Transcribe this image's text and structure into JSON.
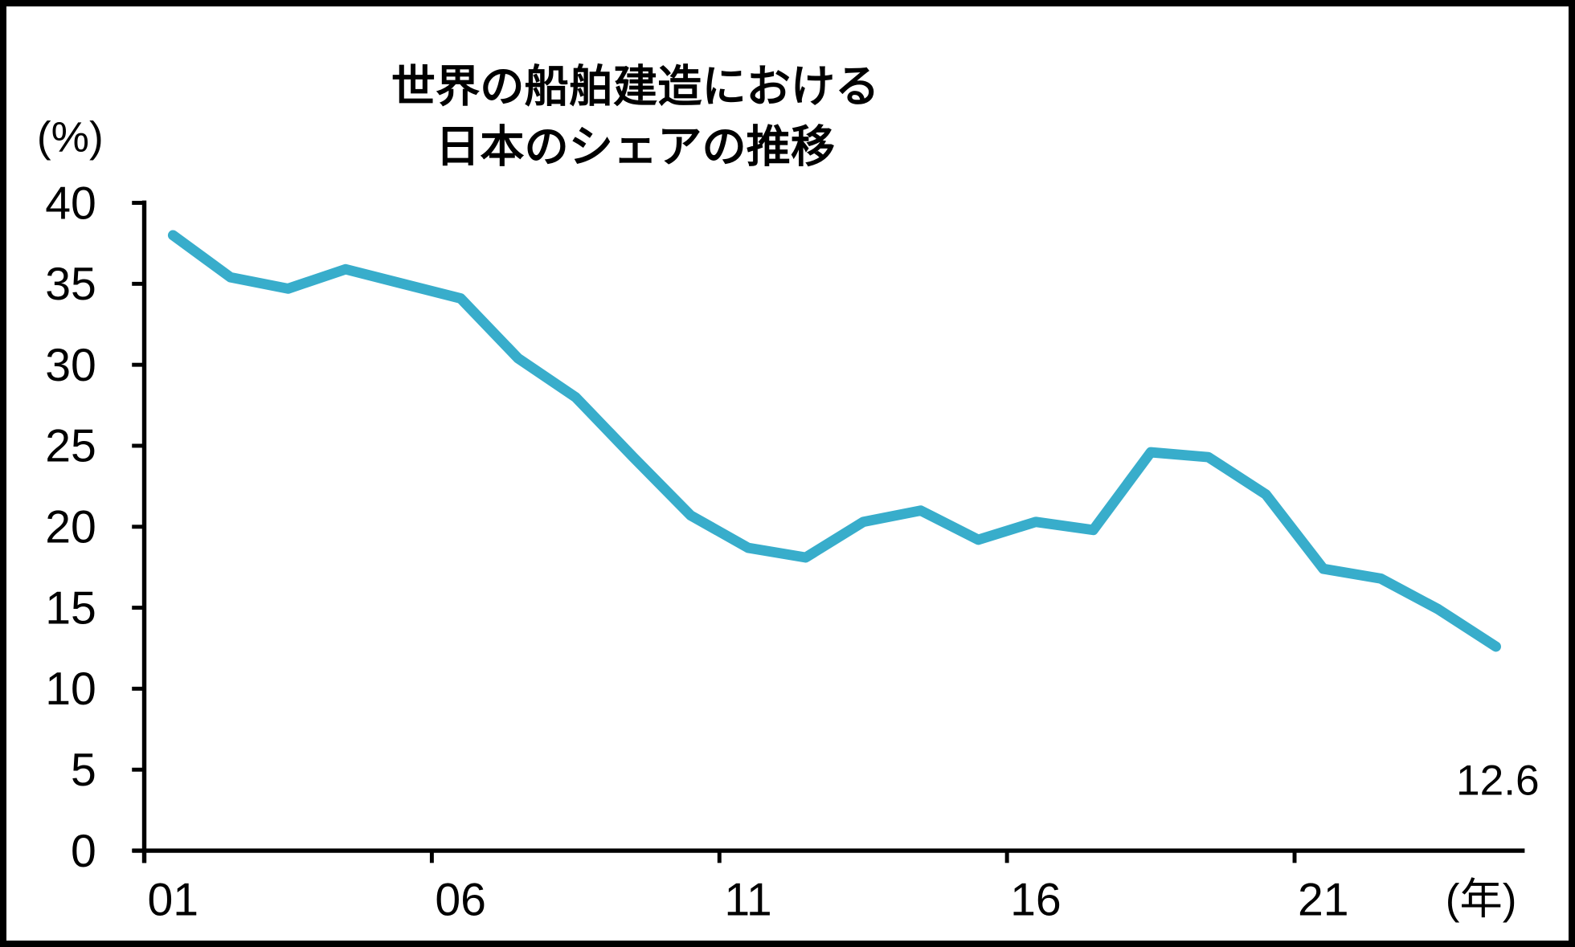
{
  "title": {
    "line1": "世界の船舶建造における",
    "line2": "日本のシェアの推移"
  },
  "y_axis": {
    "unit": "(%)",
    "ticks": [
      0,
      5,
      10,
      15,
      20,
      25,
      30,
      35,
      40
    ],
    "min": 0,
    "max": 40
  },
  "x_axis": {
    "unit": "(年)",
    "tick_labels": [
      "01",
      "06",
      "11",
      "16",
      "21"
    ],
    "tick_category_positions": [
      0,
      5,
      10,
      15,
      20
    ],
    "category_count": 24
  },
  "annotations": {
    "last_value_label": "12.6"
  },
  "colors": {
    "line": "#38ADCB",
    "axis": "#000000"
  },
  "chart_data": {
    "type": "line",
    "title": "世界の船舶建造における日本のシェアの推移",
    "xlabel": "(年)",
    "ylabel": "(%)",
    "ylim": [
      0,
      40
    ],
    "grid": false,
    "legend": "none",
    "x": [
      2001,
      2002,
      2003,
      2004,
      2005,
      2006,
      2007,
      2008,
      2009,
      2010,
      2011,
      2012,
      2013,
      2014,
      2015,
      2016,
      2017,
      2018,
      2019,
      2020,
      2021,
      2022,
      2023,
      2024
    ],
    "values": [
      38.0,
      35.4,
      34.7,
      35.9,
      35.0,
      34.1,
      30.4,
      28.0,
      24.3,
      20.7,
      18.7,
      18.1,
      20.3,
      21.0,
      19.2,
      20.3,
      19.8,
      24.6,
      24.3,
      22.0,
      17.4,
      16.8,
      14.9,
      12.6
    ],
    "last_point_data_label": 12.6,
    "x_tick_labels_shown": [
      "01",
      "06",
      "11",
      "16",
      "21"
    ]
  }
}
